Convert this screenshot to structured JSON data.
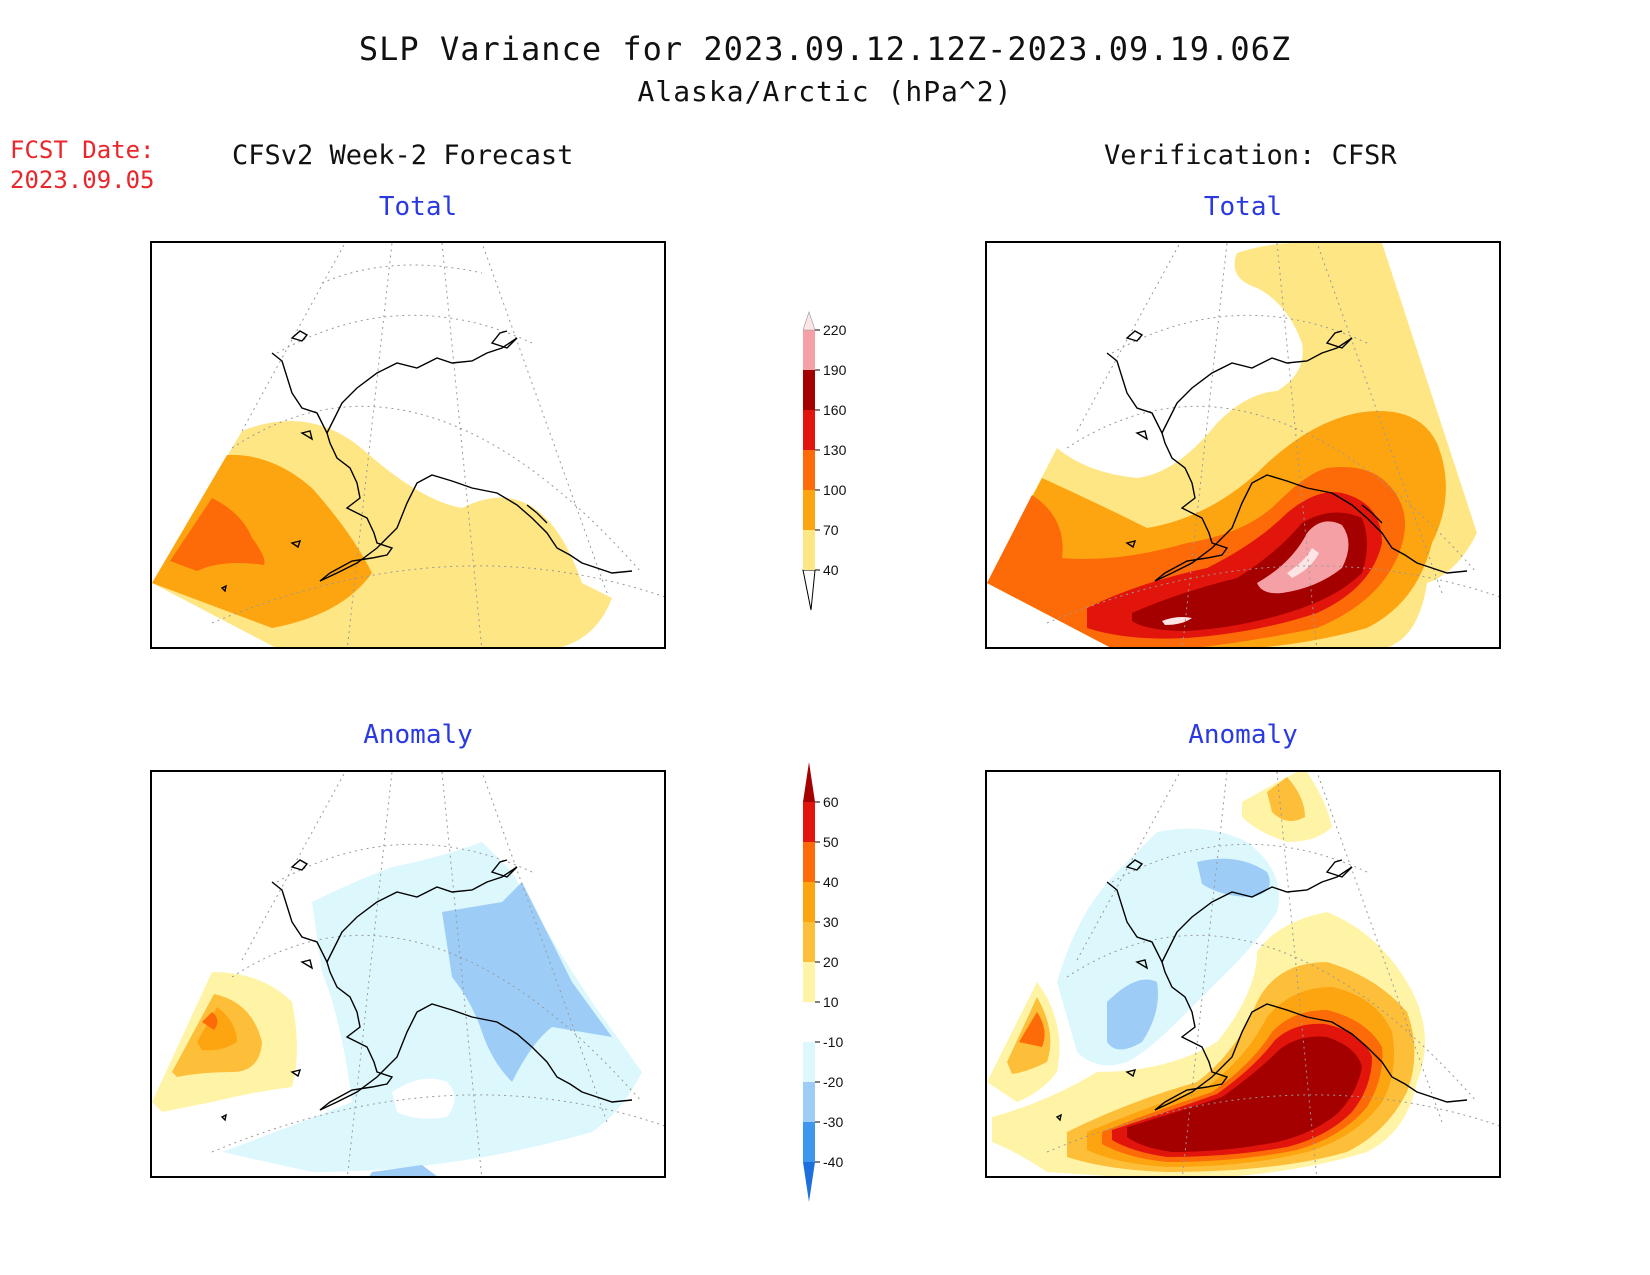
{
  "title": "SLP Variance for 2023.09.12.12Z-2023.09.19.06Z",
  "subtitle": "Alaska/Arctic (hPa^2)",
  "fcst_date_label": "FCST Date:",
  "fcst_date_value": "2023.09.05",
  "left_column_title": "CFSv2 Week-2 Forecast",
  "right_column_title": "Verification: CFSR",
  "panels": {
    "forecast_total": {
      "title": "Total"
    },
    "verification_total": {
      "title": "Total"
    },
    "forecast_anomaly": {
      "title": "Anomaly"
    },
    "verification_anomaly": {
      "title": "Anomaly"
    }
  },
  "colorbars": {
    "total": {
      "levels": [
        40,
        70,
        100,
        130,
        160,
        190,
        220
      ],
      "tick_labels": [
        "40",
        "70",
        "100",
        "130",
        "160",
        "190",
        "220"
      ],
      "colors": [
        "#fee685",
        "#fda511",
        "#fd6a08",
        "#e2150c",
        "#a50000",
        "#f4a0a4",
        "#fde5e6"
      ]
    },
    "anomaly": {
      "levels": [
        -40,
        -30,
        -20,
        -10,
        10,
        20,
        30,
        40,
        50,
        60
      ],
      "tick_labels": [
        "-40",
        "-30",
        "-20",
        "-10",
        "10",
        "20",
        "30",
        "40",
        "50",
        "60"
      ],
      "colors": [
        "#1c6fdc",
        "#3f96ef",
        "#9dcdf7",
        "#ddf8fd",
        "#ffffff",
        "#fff4a6",
        "#fdbe3a",
        "#fda511",
        "#fd6a08",
        "#e2150c",
        "#a50000"
      ]
    }
  }
}
